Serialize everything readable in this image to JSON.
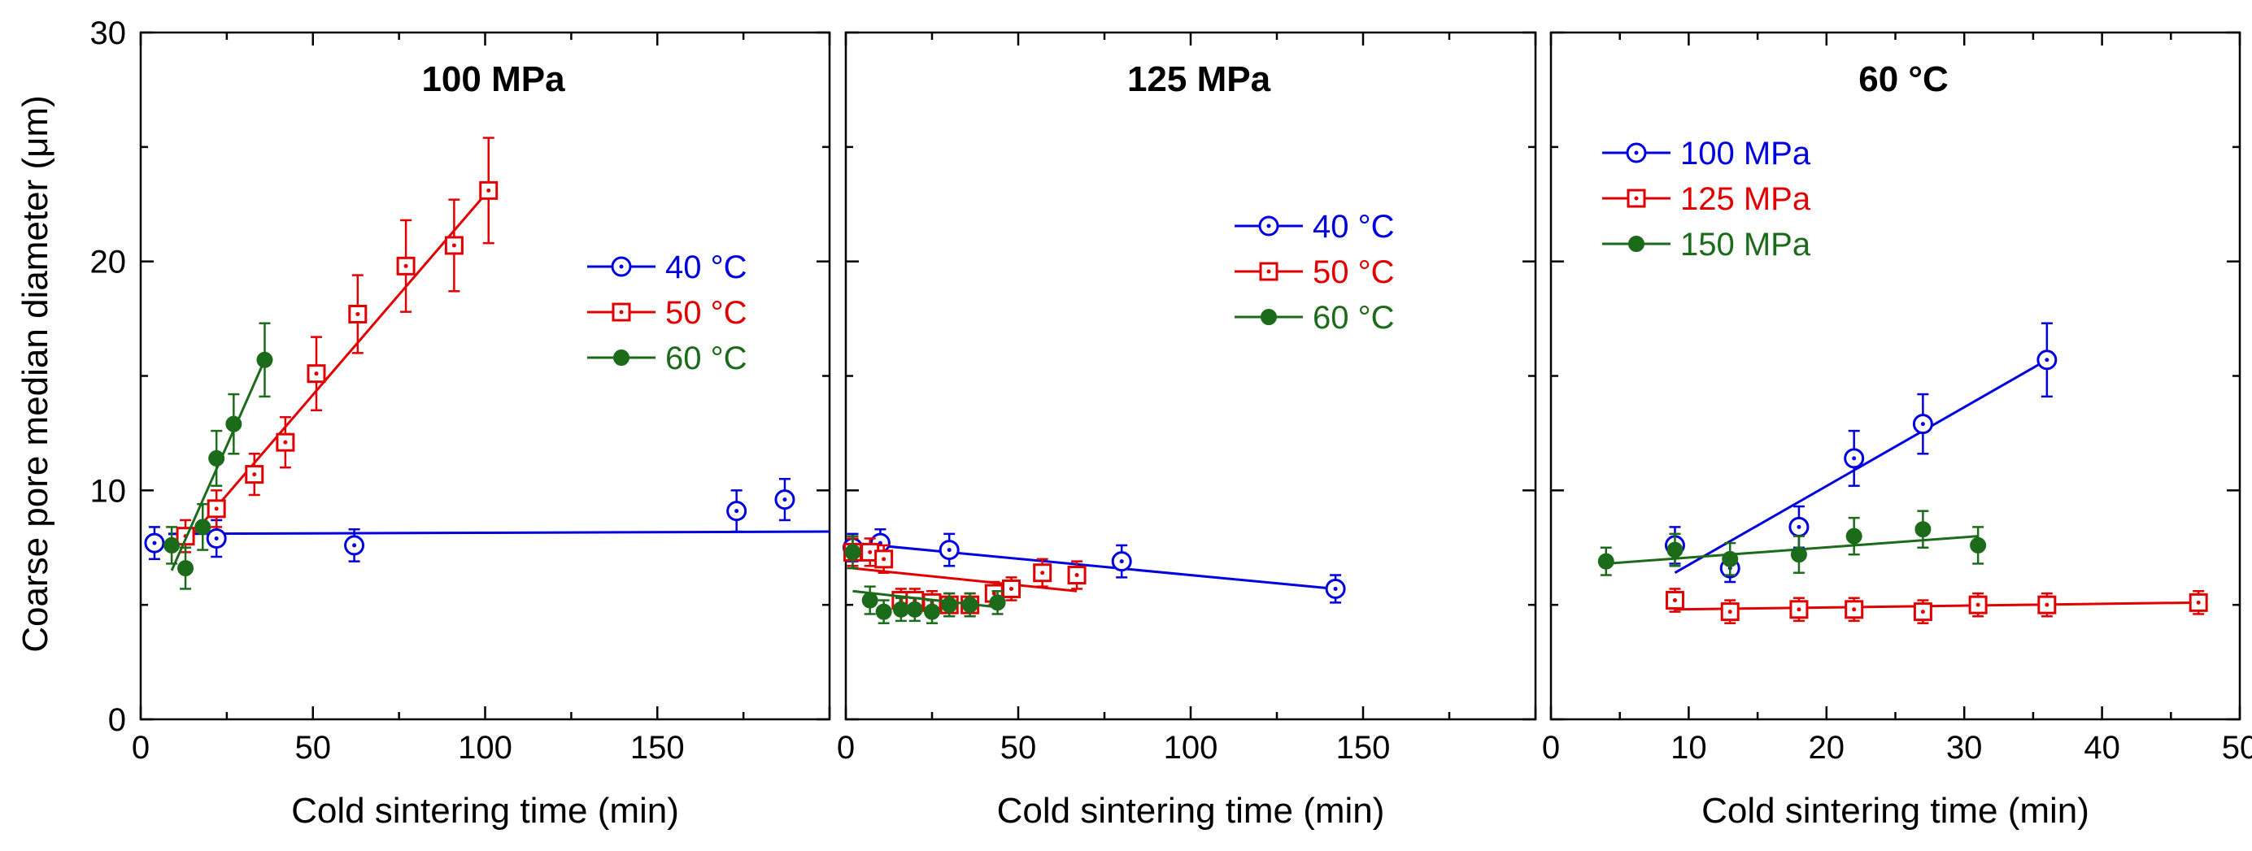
{
  "figure": {
    "ylabel": "Coarse pore median diameter (μm)",
    "colors": {
      "blue": "#0000dd",
      "red": "#e00000",
      "green": "#1b6b1b"
    }
  },
  "chart_data": [
    {
      "type": "scatter",
      "title": "100 MPa",
      "xlabel": "Cold sintering time (min)",
      "ylabel": "Coarse pore median diameter (μm)",
      "xlim": [
        0,
        200
      ],
      "ylim": [
        0,
        30
      ],
      "xticks": [
        0,
        50,
        100,
        150
      ],
      "yticks": [
        0,
        10,
        20,
        30
      ],
      "legend_position": "center-right",
      "series": [
        {
          "name": "40 °C",
          "color": "#0000dd",
          "marker": "open-circle",
          "x": [
            4,
            22,
            62,
            173,
            187
          ],
          "y": [
            7.7,
            7.9,
            7.6,
            9.1,
            9.6
          ],
          "err": [
            0.7,
            0.8,
            0.7,
            0.9,
            0.9
          ],
          "fit": [
            [
              8,
              8.1
            ],
            [
              200,
              8.2
            ]
          ]
        },
        {
          "name": "50 °C",
          "color": "#e00000",
          "marker": "open-square",
          "x": [
            13,
            22,
            33,
            42,
            51,
            63,
            77,
            91,
            101
          ],
          "y": [
            8.0,
            9.2,
            10.7,
            12.1,
            15.1,
            17.7,
            19.8,
            20.7,
            23.1
          ],
          "err": [
            0.7,
            0.8,
            0.9,
            1.1,
            1.6,
            1.7,
            2.0,
            2.0,
            2.3
          ],
          "fit": [
            [
              13,
              7.7
            ],
            [
              101,
              23.1
            ]
          ]
        },
        {
          "name": "60 °C",
          "color": "#1b6b1b",
          "marker": "filled-circle",
          "x": [
            9,
            13,
            18,
            22,
            27,
            36
          ],
          "y": [
            7.6,
            6.6,
            8.4,
            11.4,
            12.9,
            15.7
          ],
          "err": [
            0.8,
            0.9,
            1.0,
            1.2,
            1.3,
            1.6
          ],
          "fit": [
            [
              9,
              6.5
            ],
            [
              36,
              15.7
            ]
          ]
        }
      ]
    },
    {
      "type": "scatter",
      "title": "125 MPa",
      "xlabel": "Cold sintering time (min)",
      "xlim": [
        0,
        200
      ],
      "ylim": [
        0,
        30
      ],
      "xticks": [
        0,
        50,
        100,
        150
      ],
      "yticks": [
        0,
        10,
        20,
        30
      ],
      "legend_position": "top-right",
      "series": [
        {
          "name": "40 °C",
          "color": "#0000dd",
          "marker": "open-circle",
          "x": [
            2,
            10,
            30,
            80,
            142
          ],
          "y": [
            7.5,
            7.7,
            7.4,
            6.9,
            5.7
          ],
          "err": [
            0.6,
            0.6,
            0.7,
            0.7,
            0.6
          ],
          "fit": [
            [
              2,
              7.7
            ],
            [
              142,
              5.7
            ]
          ]
        },
        {
          "name": "50 °C",
          "color": "#e00000",
          "marker": "open-square",
          "x": [
            2,
            7,
            11,
            16,
            20,
            25,
            30,
            36,
            43,
            48,
            57,
            67
          ],
          "y": [
            7.3,
            7.3,
            7.0,
            5.2,
            5.2,
            5.1,
            5.0,
            5.0,
            5.5,
            5.7,
            6.4,
            6.3
          ],
          "err": [
            0.6,
            0.6,
            0.6,
            0.5,
            0.5,
            0.5,
            0.5,
            0.5,
            0.5,
            0.5,
            0.6,
            0.6
          ],
          "fit": [
            [
              2,
              6.6
            ],
            [
              67,
              5.6
            ]
          ]
        },
        {
          "name": "60 °C",
          "color": "#1b6b1b",
          "marker": "filled-circle",
          "x": [
            2,
            7,
            11,
            16,
            20,
            25,
            30,
            36,
            44
          ],
          "y": [
            7.3,
            5.2,
            4.7,
            4.8,
            4.8,
            4.7,
            5.0,
            5.0,
            5.1
          ],
          "err": [
            0.7,
            0.6,
            0.5,
            0.5,
            0.5,
            0.5,
            0.5,
            0.5,
            0.5
          ],
          "fit": [
            [
              2,
              5.6
            ],
            [
              44,
              4.9
            ]
          ]
        }
      ]
    },
    {
      "type": "scatter",
      "title": "60 °C",
      "xlabel": "Cold sintering time (min)",
      "xlim": [
        0,
        50
      ],
      "ylim": [
        0,
        30
      ],
      "xticks": [
        0,
        10,
        20,
        30,
        40,
        50
      ],
      "yticks": [
        0,
        10,
        20,
        30
      ],
      "legend_position": "top-left",
      "series": [
        {
          "name": "100 MPa",
          "color": "#0000dd",
          "marker": "open-circle",
          "x": [
            9,
            13,
            18,
            22,
            27,
            36
          ],
          "y": [
            7.6,
            6.6,
            8.4,
            11.4,
            12.9,
            15.7
          ],
          "err": [
            0.8,
            0.6,
            0.9,
            1.2,
            1.3,
            1.6
          ],
          "fit": [
            [
              9,
              6.4
            ],
            [
              36,
              15.7
            ]
          ]
        },
        {
          "name": "125 MPa",
          "color": "#e00000",
          "marker": "open-square",
          "x": [
            9,
            13,
            18,
            22,
            27,
            31,
            36,
            47
          ],
          "y": [
            5.2,
            4.7,
            4.8,
            4.8,
            4.7,
            5.0,
            5.0,
            5.1
          ],
          "err": [
            0.5,
            0.5,
            0.5,
            0.5,
            0.5,
            0.5,
            0.5,
            0.5
          ],
          "fit": [
            [
              9,
              4.8
            ],
            [
              47,
              5.1
            ]
          ]
        },
        {
          "name": "150 MPa",
          "color": "#1b6b1b",
          "marker": "filled-circle",
          "x": [
            4,
            9,
            13,
            18,
            22,
            27,
            31
          ],
          "y": [
            6.9,
            7.4,
            7.0,
            7.2,
            8.0,
            8.3,
            7.6
          ],
          "err": [
            0.6,
            0.7,
            0.7,
            0.8,
            0.8,
            0.8,
            0.8
          ],
          "fit": [
            [
              4,
              6.8
            ],
            [
              31,
              8.0
            ]
          ]
        }
      ]
    }
  ]
}
